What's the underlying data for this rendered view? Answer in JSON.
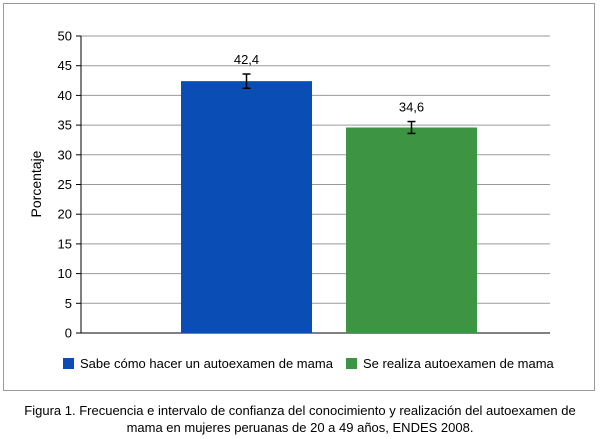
{
  "chart_data": {
    "type": "bar",
    "ylabel": "Porcentaje",
    "xlabel": "",
    "ylim": [
      0,
      50
    ],
    "yticks": [
      0,
      5,
      10,
      15,
      20,
      25,
      30,
      35,
      40,
      45,
      50
    ],
    "grid": true,
    "legend": "bottom",
    "series": [
      {
        "name": "Sabe cómo hacer un autoexamen de mama",
        "value": 42.4,
        "label": "42,4",
        "ci": [
          41.2,
          43.6
        ],
        "color": "#0a4db5"
      },
      {
        "name": "Se realiza autoexamen de mama",
        "value": 34.6,
        "label": "34,6",
        "ci": [
          33.6,
          35.6
        ],
        "color": "#3d9443"
      }
    ]
  },
  "caption": {
    "line1": "Figura 1. Frecuencia e intervalo de confianza del conocimiento y realización del autoexamen de",
    "line2": "mama en mujeres peruanas de 20 a 49 años, ENDES 2008."
  }
}
